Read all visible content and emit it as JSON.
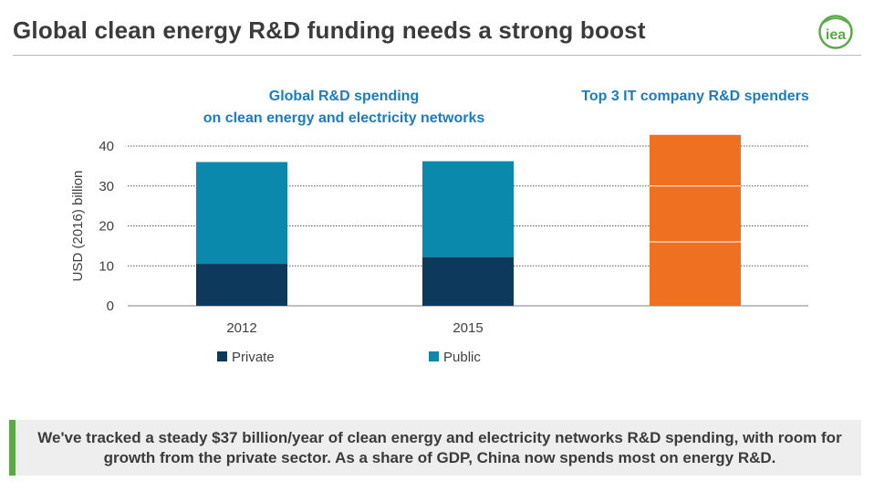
{
  "header": {
    "title": "Global clean energy R&D funding needs a strong boost",
    "logo_text": "iea"
  },
  "chart_data": {
    "type": "bar",
    "stacked": true,
    "panel_titles": [
      [
        "Global R&D spending",
        "on clean energy and electricity networks"
      ],
      [
        "Top 3 IT company R&D spenders"
      ]
    ],
    "categories": [
      "2012",
      "2015",
      ""
    ],
    "series": [
      {
        "name": "Private",
        "color": "#0d3a5c",
        "values": [
          10.5,
          12.2,
          null
        ]
      },
      {
        "name": "Public",
        "color": "#0b89ad",
        "values": [
          25.5,
          24.0,
          null
        ]
      }
    ],
    "it_segments": {
      "color": "#f07022",
      "values": [
        16,
        14,
        12.8
      ]
    },
    "ylabel": "USD (2016) billion",
    "ylim": [
      0,
      40
    ],
    "yticks": [
      0,
      10,
      20,
      30,
      40
    ],
    "grid": "dotted",
    "legend_position": "bottom-left"
  },
  "caption": {
    "text": "We've tracked a steady $37 billion/year of clean energy and electricity networks R&D spending, with room for growth from the private sector. As a share of GDP, China now spends most on energy R&D."
  },
  "colors": {
    "private": "#0d3a5c",
    "public": "#0b89ad",
    "it": "#f07022",
    "panel_title": "#1b7cc2",
    "accent": "#5aaa47"
  }
}
